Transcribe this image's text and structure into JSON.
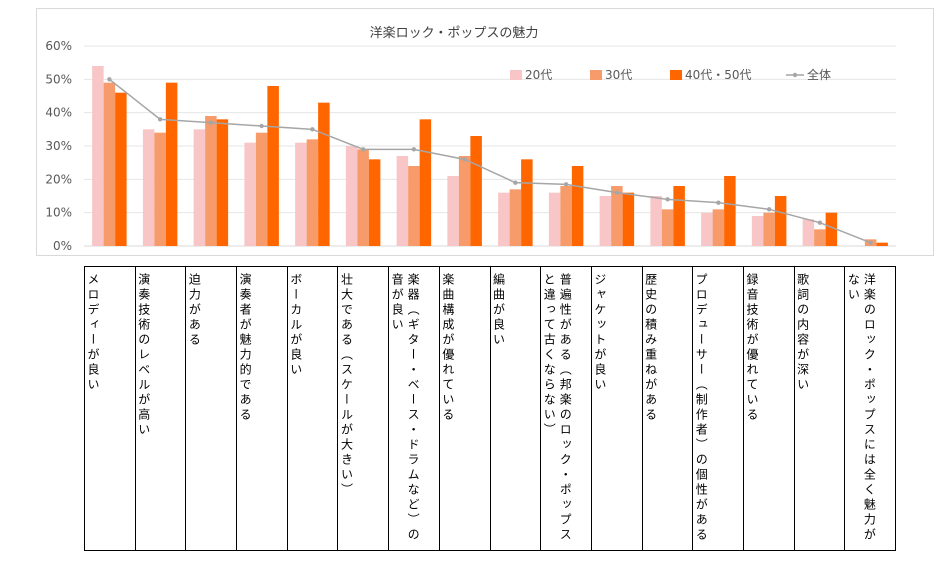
{
  "chart_data": {
    "type": "bar",
    "title": "洋楽ロック・ポップスの魅力",
    "ylim": [
      0,
      0.6
    ],
    "yticks": [
      "0%",
      "10%",
      "20%",
      "30%",
      "40%",
      "50%",
      "60%"
    ],
    "grid": true,
    "legend_position": "top-right",
    "categories": [
      "メロディーが良い",
      "演奏技術のレベルが高い",
      "迫力がある",
      "演奏者が魅力的である",
      "ボーカルが良い",
      "壮大である（スケールが大きい）",
      "楽器（ギター・ベース・ドラムなど）の音が良い",
      "楽曲構成が優れている",
      "編曲が良い",
      "普遍性がある（邦楽のロック・ポップスと違って古くならない）",
      "ジャケットが良い",
      "歴史の積み重ねがある",
      "プロデューサー（制作者）の個性がある",
      "録音技術が優れている",
      "歌詞の内容が深い",
      "洋楽のロック・ポップスには全く魅力がない"
    ],
    "series": [
      {
        "name": "20代",
        "kind": "bar",
        "color": "#f8c6c6",
        "values": [
          0.54,
          0.35,
          0.35,
          0.31,
          0.31,
          0.3,
          0.27,
          0.21,
          0.16,
          0.16,
          0.15,
          0.15,
          0.1,
          0.09,
          0.08,
          0.0
        ]
      },
      {
        "name": "30代",
        "kind": "bar",
        "color": "#f79b6a",
        "values": [
          0.49,
          0.34,
          0.39,
          0.34,
          0.32,
          0.29,
          0.24,
          0.27,
          0.17,
          0.18,
          0.18,
          0.11,
          0.11,
          0.1,
          0.05,
          0.02
        ]
      },
      {
        "name": "40代・50代",
        "kind": "bar",
        "color": "#ff6600",
        "values": [
          0.46,
          0.49,
          0.38,
          0.48,
          0.43,
          0.26,
          0.38,
          0.33,
          0.26,
          0.24,
          0.16,
          0.18,
          0.21,
          0.15,
          0.1,
          0.01
        ]
      },
      {
        "name": "全体",
        "kind": "line",
        "color": "#a6a6a6",
        "values": [
          0.5,
          0.38,
          0.37,
          0.36,
          0.35,
          0.29,
          0.29,
          0.26,
          0.19,
          0.185,
          0.16,
          0.14,
          0.13,
          0.11,
          0.07,
          0.01
        ]
      }
    ]
  }
}
